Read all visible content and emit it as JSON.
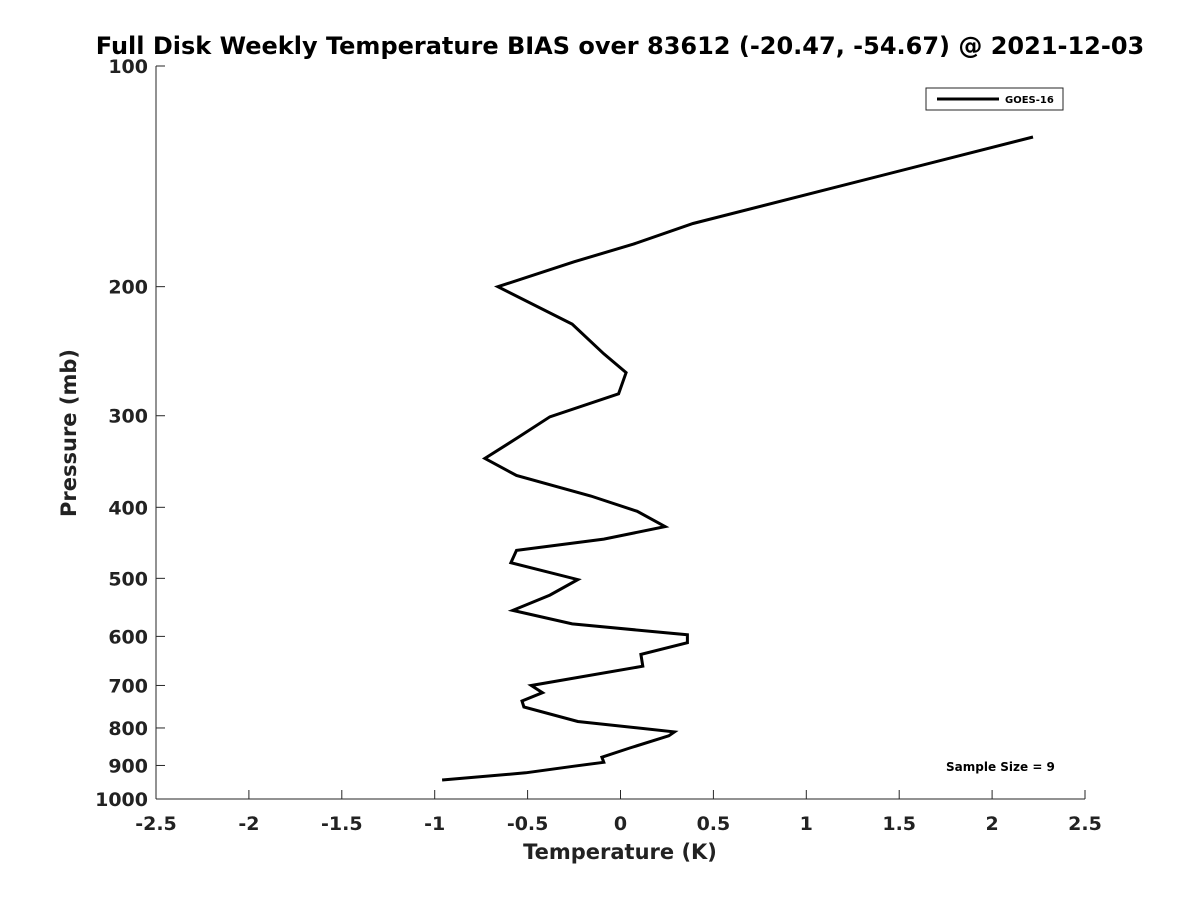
{
  "chart_data": {
    "type": "line",
    "title": "Full Disk Weekly Temperature BIAS over 83612 (-20.47, -54.67) @ 2021-12-03",
    "xlabel": "Temperature (K)",
    "ylabel": "Pressure (mb)",
    "xlim": [
      -2.5,
      2.5
    ],
    "ylim": [
      100,
      1000
    ],
    "yscale": "log",
    "y_reversed": true,
    "x_ticks": [
      -2.5,
      -2,
      -1.5,
      -1,
      -0.5,
      0,
      0.5,
      1,
      1.5,
      2,
      2.5
    ],
    "x_tick_labels": [
      "-2.5",
      "-2",
      "-1.5",
      "-1",
      "-0.5",
      "0",
      "0.5",
      "1",
      "1.5",
      "2",
      "2.5"
    ],
    "y_ticks": [
      100,
      200,
      300,
      400,
      500,
      600,
      700,
      800,
      900,
      1000
    ],
    "y_tick_labels": [
      "100",
      "200",
      "300",
      "400",
      "500",
      "600",
      "700",
      "800",
      "900",
      "1000"
    ],
    "grid": false,
    "legend_position": "top-right",
    "series": [
      {
        "name": "GOES-16",
        "color": "#000000",
        "points": [
          {
            "x": 2.22,
            "y": 125
          },
          {
            "x": 0.39,
            "y": 164
          },
          {
            "x": 0.07,
            "y": 175
          },
          {
            "x": -0.25,
            "y": 185
          },
          {
            "x": -0.66,
            "y": 200
          },
          {
            "x": -0.26,
            "y": 225
          },
          {
            "x": -0.09,
            "y": 247
          },
          {
            "x": 0.03,
            "y": 262
          },
          {
            "x": -0.01,
            "y": 280
          },
          {
            "x": -0.38,
            "y": 301
          },
          {
            "x": -0.55,
            "y": 321
          },
          {
            "x": -0.73,
            "y": 343
          },
          {
            "x": -0.56,
            "y": 362
          },
          {
            "x": -0.16,
            "y": 386
          },
          {
            "x": 0.09,
            "y": 405
          },
          {
            "x": 0.24,
            "y": 425
          },
          {
            "x": -0.09,
            "y": 442
          },
          {
            "x": -0.56,
            "y": 458
          },
          {
            "x": -0.59,
            "y": 476
          },
          {
            "x": -0.23,
            "y": 502
          },
          {
            "x": -0.38,
            "y": 527
          },
          {
            "x": -0.58,
            "y": 553
          },
          {
            "x": -0.26,
            "y": 577
          },
          {
            "x": 0.36,
            "y": 597
          },
          {
            "x": 0.36,
            "y": 612
          },
          {
            "x": 0.11,
            "y": 635
          },
          {
            "x": 0.12,
            "y": 659
          },
          {
            "x": -0.48,
            "y": 700
          },
          {
            "x": -0.42,
            "y": 716
          },
          {
            "x": -0.53,
            "y": 735
          },
          {
            "x": -0.52,
            "y": 749
          },
          {
            "x": -0.23,
            "y": 784
          },
          {
            "x": 0.29,
            "y": 810
          },
          {
            "x": 0.26,
            "y": 820
          },
          {
            "x": 0.05,
            "y": 852
          },
          {
            "x": -0.1,
            "y": 877
          },
          {
            "x": -0.09,
            "y": 891
          },
          {
            "x": -0.25,
            "y": 902
          },
          {
            "x": -0.51,
            "y": 921
          },
          {
            "x": -0.96,
            "y": 942
          }
        ]
      }
    ],
    "annotations": [
      "Sample Size = 9"
    ]
  }
}
